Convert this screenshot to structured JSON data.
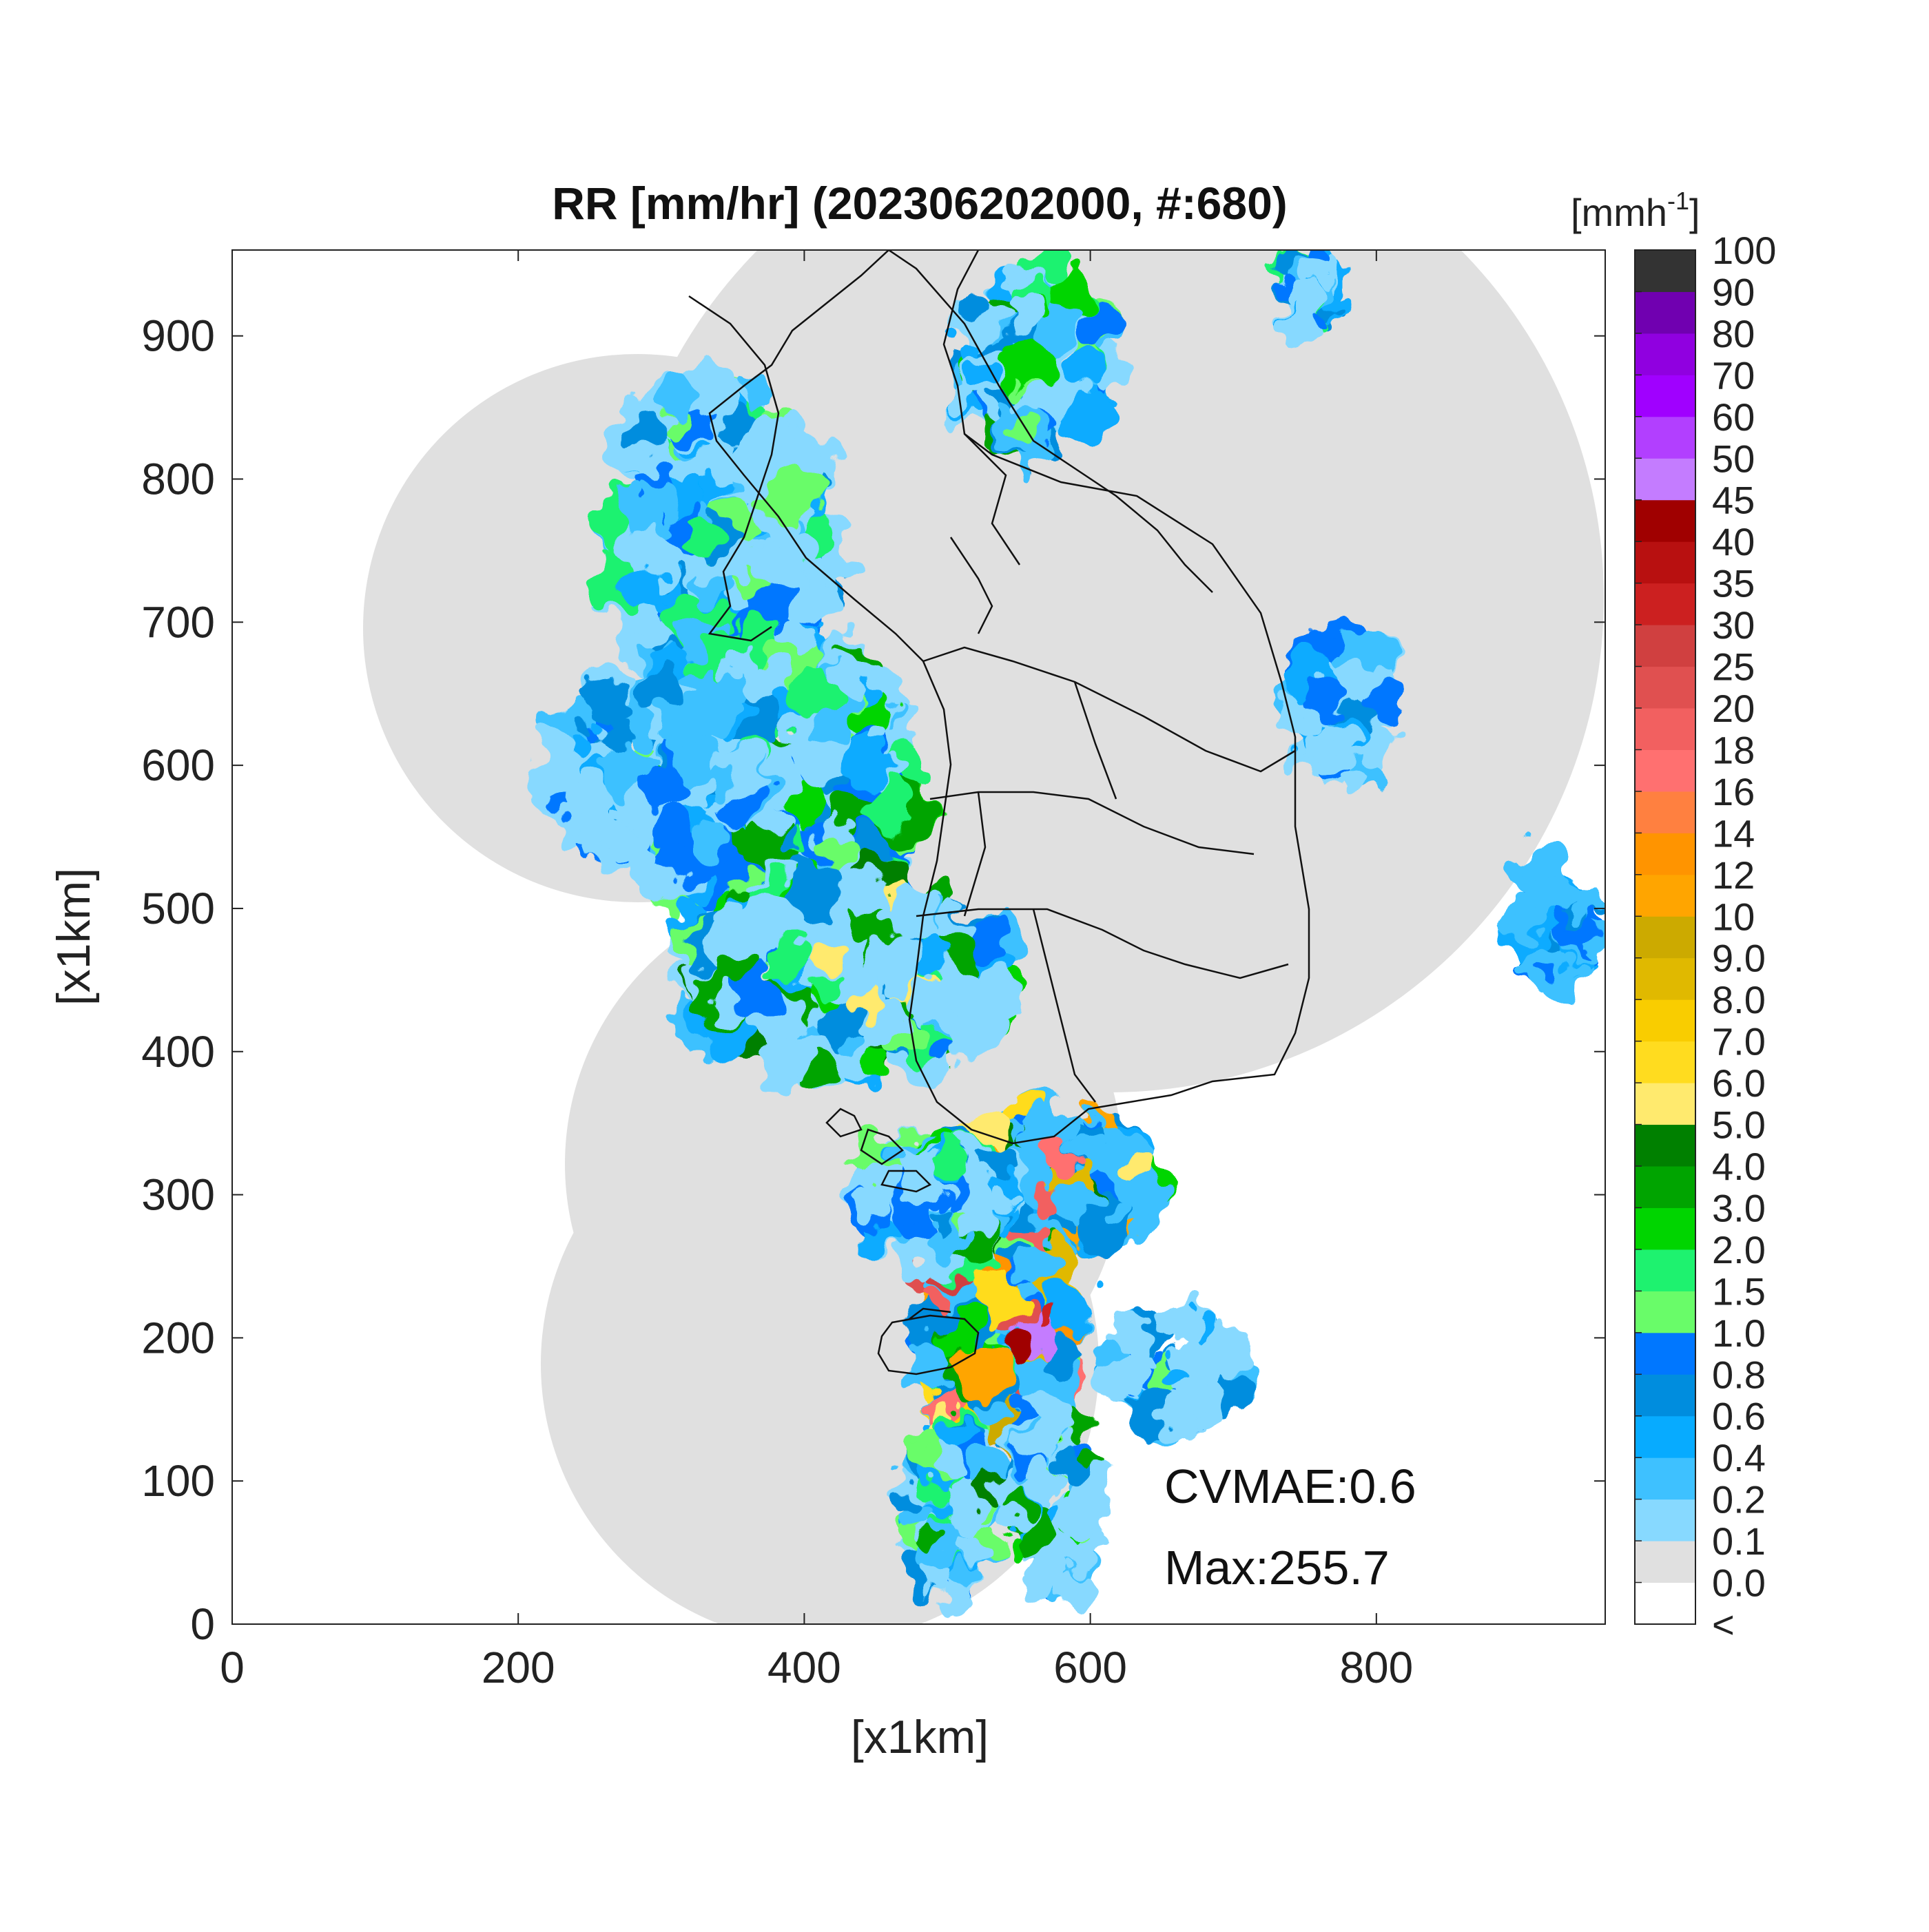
{
  "title": "RR [mm/hr] (202306202000, #:680)",
  "xlabel": "[x1km]",
  "ylabel": "[x1km]",
  "colorbar_unit": "[mmh",
  "colorbar_unit_sup": "-1",
  "colorbar_unit_close": "]",
  "annotation": {
    "cvmae": "CVMAE:0.6",
    "max": "Max:255.7"
  },
  "map": {
    "background_color": "#e0e0e0"
  },
  "chart_data": {
    "type": "heatmap",
    "title": "RR [mm/hr] (202306202000, #:680)",
    "xlabel": "[x1km]",
    "ylabel": "[x1km]",
    "xlim": [
      0,
      960
    ],
    "ylim": [
      0,
      960
    ],
    "xticks": [
      0,
      200,
      400,
      600,
      800
    ],
    "yticks": [
      0,
      100,
      200,
      300,
      400,
      500,
      600,
      700,
      800,
      900
    ],
    "colorbar": {
      "labels": [
        "<",
        "0.0",
        "0.1",
        "0.2",
        "0.4",
        "0.6",
        "0.8",
        "1.0",
        "1.5",
        "2.0",
        "3.0",
        "4.0",
        "5.0",
        "6.0",
        "7.0",
        "8.0",
        "9.0",
        "10",
        "12",
        "14",
        "16",
        "18",
        "20",
        "25",
        "30",
        "35",
        "40",
        "45",
        "50",
        "60",
        "70",
        "80",
        "90",
        "100"
      ],
      "colors": [
        "#ffffff",
        "#e0e0e0",
        "#87d9ff",
        "#3ec1ff",
        "#07abff",
        "#008dde",
        "#0077ff",
        "#69fc69",
        "#1ef26f",
        "#00d500",
        "#00a400",
        "#008000",
        "#ffea6e",
        "#ffdc1f",
        "#f9cd00",
        "#e0b900",
        "#ccaa00",
        "#ffa500",
        "#ff9400",
        "#ff8040",
        "#ff7070",
        "#f26060",
        "#e05050",
        "#d04040",
        "#cc2020",
        "#b81010",
        "#a00000",
        "#c47cff",
        "#b23fff",
        "#a000ff",
        "#9000e0",
        "#7000b0",
        "#333333"
      ]
    },
    "peak_value": 255.7,
    "cvmae": 0.6
  }
}
